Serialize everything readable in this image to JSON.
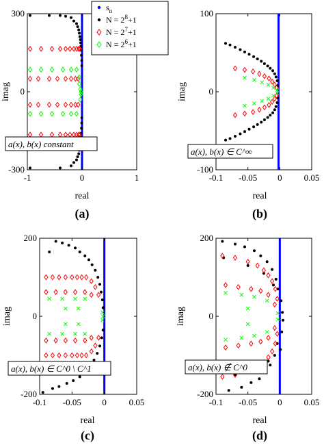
{
  "figure": {
    "colors": {
      "s_n": "#0000ff",
      "n8": "#000000",
      "n7": "#ff0000",
      "n6": "#00ff00"
    },
    "legend": [
      {
        "label": "s",
        "sub": "n",
        "marker": "dot",
        "color": "#0000ff"
      },
      {
        "label": "N = 2",
        "sup": "8",
        "tail": "+1",
        "marker": "dot",
        "color": "#000000"
      },
      {
        "label": "N = 2",
        "sup": "7",
        "tail": "+1",
        "marker": "diamond",
        "color": "#ff0000"
      },
      {
        "label": "N = 2",
        "sup": "6",
        "tail": "+1",
        "marker": "diamond",
        "color": "#00ff00"
      }
    ]
  },
  "chart_data": [
    {
      "type": "scatter",
      "panel_label": "(a)",
      "xlabel": "real",
      "ylabel": "imag",
      "xlim": [
        -1,
        1
      ],
      "ylim": [
        -300,
        300
      ],
      "xticks": [
        -1,
        0,
        1
      ],
      "yticks": [
        -300,
        0,
        300
      ],
      "annotation": "a(x), b(x) constant",
      "series": [
        {
          "key": "s_n",
          "marker": "line",
          "x": [
            0,
            0
          ],
          "y": [
            -300,
            300
          ]
        },
        {
          "key": "n8",
          "marker": "dot",
          "x": [
            -0.95,
            -0.6,
            -0.4,
            -0.3,
            -0.2,
            -0.15,
            -0.1,
            -0.08,
            -0.06,
            -0.05,
            -0.04,
            -0.03,
            -0.025,
            -0.02,
            -0.015,
            -0.01,
            -0.005,
            -0.003,
            -0.2,
            -0.15,
            -0.1,
            -0.08,
            -0.06,
            -0.05,
            -0.04,
            -0.03,
            -0.025,
            -0.02,
            -0.015,
            -0.01,
            -0.005,
            -0.003,
            -0.95,
            -0.4
          ],
          "y": [
            293,
            293,
            293,
            290,
            285,
            272,
            262,
            250,
            238,
            225,
            212,
            200,
            188,
            175,
            160,
            140,
            120,
            100,
            -285,
            -272,
            -262,
            -250,
            -238,
            -225,
            -212,
            -200,
            -188,
            -175,
            -160,
            -140,
            -120,
            -100,
            -293,
            -293
          ]
        },
        {
          "key": "n7",
          "marker": "diamond",
          "x": [
            -0.95,
            -0.75,
            -0.55,
            -0.4,
            -0.3,
            -0.22,
            -0.15,
            -0.1,
            -0.06,
            -0.04,
            -0.95,
            -0.75,
            -0.55,
            -0.4,
            -0.3,
            -0.22,
            -0.15,
            -0.1,
            -0.06,
            -0.04,
            -0.95,
            -0.8,
            -0.6,
            -0.45,
            -0.3,
            -0.2,
            -0.12,
            -0.07,
            -0.95,
            -0.8,
            -0.6,
            -0.45,
            -0.3,
            -0.2,
            -0.12,
            -0.07
          ],
          "y": [
            165,
            165,
            165,
            165,
            165,
            165,
            165,
            165,
            165,
            165,
            -165,
            -165,
            -165,
            -165,
            -165,
            -165,
            -165,
            -165,
            -165,
            -165,
            50,
            50,
            50,
            50,
            50,
            50,
            50,
            50,
            -50,
            -50,
            -50,
            -50,
            -50,
            -50,
            -50,
            -50
          ]
        },
        {
          "key": "n6",
          "marker": "diamond",
          "x": [
            -0.95,
            -0.75,
            -0.55,
            -0.35,
            -0.2,
            -0.1,
            -0.95,
            -0.75,
            -0.55,
            -0.35,
            -0.2,
            -0.1,
            -0.05,
            -0.03,
            -0.02,
            -0.02,
            -0.03,
            -0.05
          ],
          "y": [
            85,
            85,
            85,
            85,
            85,
            85,
            -85,
            -85,
            -85,
            -85,
            -85,
            -85,
            30,
            10,
            0,
            -10,
            -30,
            55
          ]
        }
      ]
    },
    {
      "type": "scatter",
      "panel_label": "(b)",
      "xlabel": "real",
      "ylabel": "imag",
      "xlim": [
        -0.1,
        0.05
      ],
      "ylim": [
        -100,
        100
      ],
      "xticks": [
        -0.1,
        -0.05,
        0,
        0.05
      ],
      "yticks": [
        -100,
        0,
        100
      ],
      "annotation": "a(x), b(x) ∈ C^∞",
      "series": [
        {
          "key": "s_n",
          "marker": "line",
          "x": [
            -0.002,
            -0.002
          ],
          "y": [
            -100,
            100
          ]
        },
        {
          "key": "n8",
          "marker": "dot",
          "x": [
            -0.085,
            -0.078,
            -0.07,
            -0.062,
            -0.055,
            -0.048,
            -0.041,
            -0.035,
            -0.029,
            -0.024,
            -0.019,
            -0.015,
            -0.011,
            -0.008,
            -0.006,
            -0.004,
            -0.003,
            -0.085,
            -0.078,
            -0.07,
            -0.062,
            -0.055,
            -0.048,
            -0.041,
            -0.035,
            -0.029,
            -0.024,
            -0.019,
            -0.015,
            -0.011,
            -0.008,
            -0.006,
            -0.004,
            -0.003
          ],
          "y": [
            62,
            60,
            57,
            54,
            51,
            48,
            45,
            42,
            39,
            36,
            33,
            30,
            27,
            23,
            19,
            14,
            8,
            -62,
            -60,
            -57,
            -54,
            -51,
            -48,
            -45,
            -42,
            -39,
            -36,
            -33,
            -30,
            -27,
            -23,
            -19,
            -14,
            -8
          ]
        },
        {
          "key": "n7",
          "marker": "diamond",
          "x": [
            -0.07,
            -0.055,
            -0.042,
            -0.032,
            -0.024,
            -0.017,
            -0.012,
            -0.008,
            -0.005,
            -0.07,
            -0.055,
            -0.042,
            -0.032,
            -0.024,
            -0.017,
            -0.012,
            -0.008,
            -0.005
          ],
          "y": [
            30,
            28,
            26,
            23,
            20,
            17,
            13,
            9,
            5,
            -30,
            -28,
            -26,
            -23,
            -20,
            -17,
            -13,
            -9,
            -5
          ]
        },
        {
          "key": "n6",
          "marker": "cross",
          "x": [
            -0.055,
            -0.04,
            -0.028,
            -0.018,
            -0.01,
            -0.055,
            -0.04,
            -0.028,
            -0.018,
            -0.01,
            -0.004,
            -0.004
          ],
          "y": [
            18,
            15,
            12,
            9,
            5,
            -18,
            -15,
            -12,
            -9,
            -5,
            2,
            -2
          ]
        }
      ]
    },
    {
      "type": "scatter",
      "panel_label": "(c)",
      "xlabel": "real",
      "ylabel": "imag",
      "xlim": [
        -0.1,
        0.05
      ],
      "ylim": [
        -200,
        200
      ],
      "xticks": [
        -0.1,
        -0.05,
        0,
        0.05
      ],
      "yticks": [
        -200,
        0,
        200
      ],
      "annotation": "a(x), b(x) ∈ C^0 \\ C^1",
      "series": [
        {
          "key": "s_n",
          "marker": "line",
          "x": [
            0,
            0
          ],
          "y": [
            -200,
            200
          ]
        },
        {
          "key": "n8",
          "marker": "dot",
          "x": [
            -0.075,
            -0.065,
            -0.055,
            -0.045,
            -0.038,
            -0.03,
            -0.024,
            -0.019,
            -0.014,
            -0.01,
            -0.007,
            -0.005,
            -0.003,
            -0.002,
            -0.08,
            -0.07,
            -0.058,
            -0.048,
            -0.038,
            -0.03,
            -0.022,
            -0.016,
            -0.011,
            -0.007,
            -0.004,
            -0.002,
            -0.095,
            -0.085
          ],
          "y": [
            192,
            188,
            182,
            175,
            165,
            155,
            145,
            132,
            118,
            100,
            82,
            62,
            42,
            22,
            -185,
            -180,
            -172,
            -165,
            -155,
            -142,
            -128,
            -112,
            -95,
            -76,
            -55,
            -35,
            -195,
            165
          ]
        },
        {
          "key": "n7",
          "marker": "diamond",
          "x": [
            -0.09,
            -0.08,
            -0.07,
            -0.06,
            -0.05,
            -0.042,
            -0.035,
            -0.028,
            -0.02,
            -0.014,
            -0.009,
            -0.09,
            -0.08,
            -0.07,
            -0.06,
            -0.05,
            -0.042,
            -0.035,
            -0.028,
            -0.02,
            -0.014,
            -0.009,
            -0.09,
            -0.075,
            -0.06,
            -0.045,
            -0.03,
            -0.02,
            -0.09,
            -0.075,
            -0.06,
            -0.045,
            -0.03,
            -0.02
          ],
          "y": [
            100,
            100,
            100,
            100,
            100,
            100,
            100,
            100,
            90,
            75,
            55,
            -100,
            -100,
            -100,
            -100,
            -100,
            -100,
            -100,
            -100,
            -90,
            -75,
            -55,
            62,
            62,
            62,
            62,
            62,
            55,
            -62,
            -62,
            -62,
            -62,
            -62,
            -55
          ]
        },
        {
          "key": "n6",
          "marker": "cross",
          "x": [
            -0.085,
            -0.065,
            -0.045,
            -0.03,
            -0.085,
            -0.065,
            -0.045,
            -0.03,
            -0.06,
            -0.04,
            -0.06,
            -0.04,
            -0.003,
            -0.003,
            -0.002
          ],
          "y": [
            45,
            45,
            45,
            45,
            -45,
            -45,
            -45,
            -45,
            20,
            20,
            -20,
            -20,
            10,
            -10,
            0
          ]
        }
      ]
    },
    {
      "type": "scatter",
      "panel_label": "(d)",
      "xlabel": "real",
      "ylabel": "imag",
      "xlim": [
        -0.1,
        0.05
      ],
      "ylim": [
        -200,
        200
      ],
      "xticks": [
        -0.1,
        -0.05,
        0,
        0.05
      ],
      "yticks": [
        -200,
        0,
        200
      ],
      "annotation": "a(x), b(x) ∉ C^0",
      "series": [
        {
          "key": "s_n",
          "marker": "line",
          "x": [
            0,
            0
          ],
          "y": [
            -200,
            200
          ]
        },
        {
          "key": "n8",
          "marker": "dot",
          "x": [
            -0.09,
            -0.07,
            -0.055,
            -0.04,
            -0.03,
            -0.02,
            -0.012,
            -0.006,
            -0.003,
            0.002,
            0.004,
            -0.08,
            -0.06,
            -0.045,
            -0.032,
            -0.022,
            -0.015,
            -0.008,
            -0.004,
            0.003,
            -0.088,
            -0.05,
            -0.025,
            -0.01,
            0.005,
            -0.07,
            -0.035,
            -0.018,
            0.001
          ],
          "y": [
            192,
            185,
            178,
            168,
            155,
            140,
            120,
            95,
            70,
            40,
            10,
            -190,
            -182,
            -170,
            -160,
            -145,
            -125,
            -100,
            -70,
            -40,
            150,
            130,
            110,
            80,
            -10,
            -150,
            -135,
            -115,
            -85
          ]
        },
        {
          "key": "n7",
          "marker": "diamond",
          "x": [
            -0.09,
            -0.07,
            -0.05,
            -0.035,
            -0.025,
            -0.018,
            -0.012,
            -0.007,
            -0.004,
            -0.09,
            -0.07,
            -0.05,
            -0.035,
            -0.025,
            -0.018,
            -0.012,
            -0.007,
            -0.004,
            -0.085,
            -0.065,
            -0.045,
            -0.03,
            -0.018,
            -0.008,
            -0.085,
            -0.065,
            -0.045,
            -0.03,
            -0.018,
            -0.008
          ],
          "y": [
            155,
            150,
            140,
            130,
            118,
            105,
            90,
            70,
            45,
            -155,
            -150,
            -140,
            -130,
            -118,
            -105,
            -90,
            -70,
            -45,
            80,
            75,
            70,
            65,
            55,
            30,
            -80,
            -75,
            -70,
            -65,
            -55,
            -30
          ]
        },
        {
          "key": "n6",
          "marker": "cross",
          "x": [
            -0.085,
            -0.06,
            -0.04,
            -0.02,
            -0.085,
            -0.06,
            -0.04,
            -0.02,
            -0.05,
            -0.05,
            -0.003,
            -0.003
          ],
          "y": [
            60,
            55,
            50,
            40,
            -60,
            -55,
            -50,
            -40,
            20,
            -20,
            8,
            -8
          ]
        }
      ]
    }
  ]
}
